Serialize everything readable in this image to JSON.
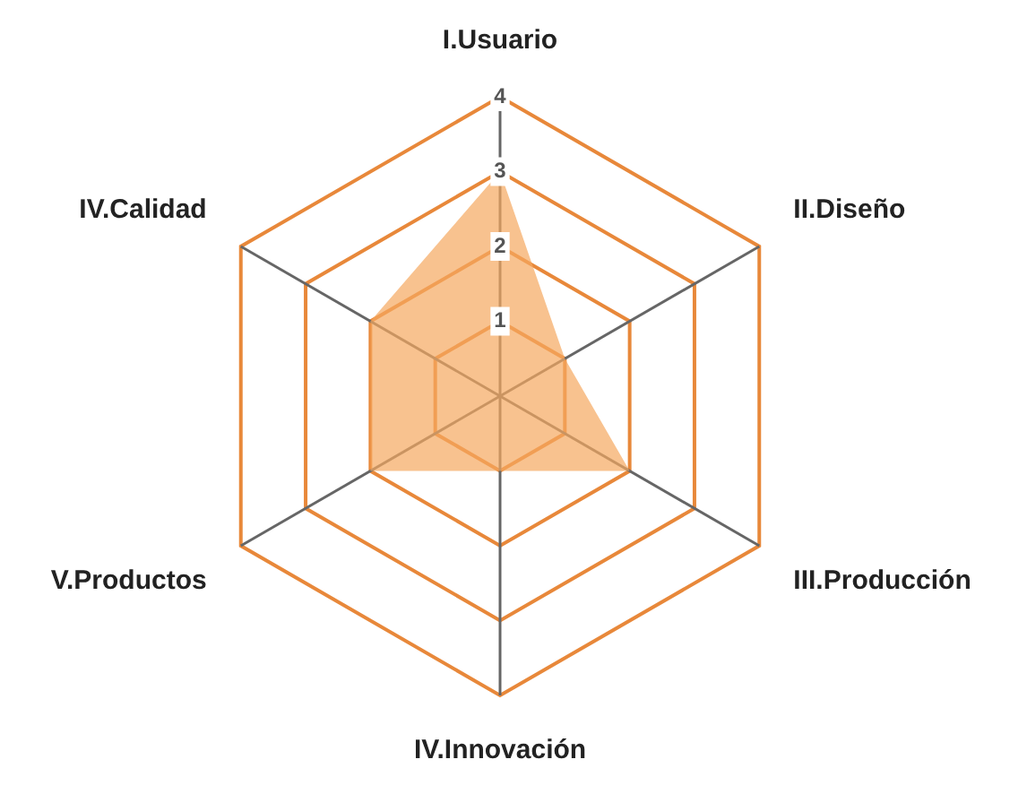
{
  "chart_data": {
    "type": "radar",
    "categories": [
      "I.Usuario",
      "II.Diseño",
      "III.Producción",
      "IV.Innovación",
      "V.Productos",
      "IV.Calidad"
    ],
    "series": [
      {
        "color": "#f5a860",
        "values": [
          3,
          1,
          2,
          1,
          2,
          2
        ]
      }
    ],
    "ylim": [
      0,
      4
    ],
    "yticks": [
      1,
      2,
      3,
      4
    ],
    "grid": true,
    "legend": false,
    "marker": "none"
  }
}
